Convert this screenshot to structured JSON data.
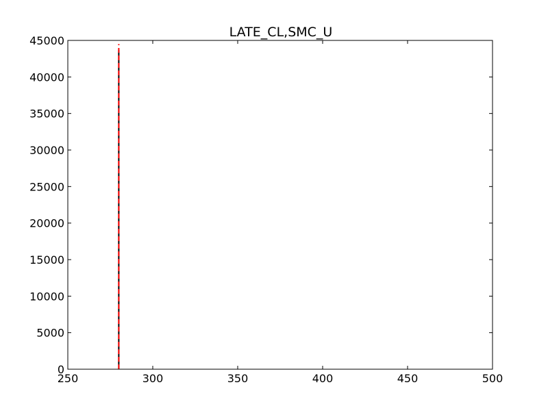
{
  "chart_data": {
    "type": "line",
    "title": "LATE_CL,SMC_U",
    "xlabel": "",
    "ylabel": "",
    "xlim": [
      250,
      500
    ],
    "ylim": [
      0,
      45000
    ],
    "x_ticks": [
      250,
      300,
      350,
      400,
      450,
      500
    ],
    "y_ticks": [
      0,
      5000,
      10000,
      15000,
      20000,
      25000,
      30000,
      35000,
      40000,
      45000
    ],
    "grid": false,
    "series": [
      {
        "color": "#000000",
        "style": "solid",
        "x": [
          280,
          280
        ],
        "y": [
          0,
          43700
        ]
      },
      {
        "color": "#ff0000",
        "style": "dashed",
        "x": [
          280,
          280
        ],
        "y": [
          0,
          44500
        ]
      }
    ]
  }
}
